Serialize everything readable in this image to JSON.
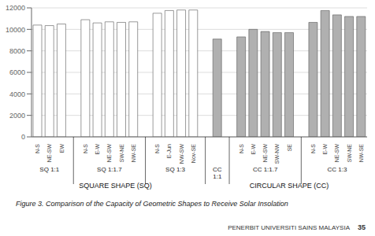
{
  "chart_data": {
    "type": "bar",
    "title": "Figure 3. Comparison of the Capacity of Geometric Shapes to Receive Solar Insolation",
    "sections": [
      {
        "label": "SQUARE SHAPE (SQ)",
        "color": "#ffffff",
        "groups": [
          {
            "label": "SQ 1:1",
            "categories": [
              "N-S",
              "NE-SW",
              "EW"
            ],
            "values": [
              10400,
              10350,
              10500
            ]
          },
          {
            "label": "SQ 1:1.7",
            "categories": [
              "N-S",
              "E-W",
              "NE-SW",
              "SW-NE",
              "NW-SE"
            ],
            "values": [
              10900,
              10600,
              10700,
              10650,
              10700
            ]
          },
          {
            "label": "SQ 1:3",
            "categories": [
              "N-S",
              "E-Jun",
              "NW-SW",
              "Nov-SE"
            ],
            "values": [
              11500,
              11750,
              11800,
              11800
            ]
          }
        ]
      },
      {
        "label": "CIRCULAR SHAPE (CC)",
        "color": "#b0b0b0",
        "groups": [
          {
            "label": "CC\n1:1",
            "categories": [
              null
            ],
            "values": [
              9100
            ]
          },
          {
            "label": "CC 1:1.7",
            "categories": [
              "N-S",
              "E-W",
              "NE-SW",
              "SW-NW",
              "SE"
            ],
            "values": [
              9300,
              10000,
              9800,
              9700,
              9700
            ]
          },
          {
            "label": "CC 1:3",
            "categories": [
              "N-S",
              "E-W",
              "NE-SW",
              "SW-NE",
              "NW-SE"
            ],
            "values": [
              10650,
              11750,
              11350,
              11200,
              11200
            ]
          }
        ]
      }
    ],
    "ylim": [
      0,
      12000
    ],
    "yticks": [
      0,
      2000,
      4000,
      6000,
      8000,
      10000,
      12000
    ],
    "grid": true,
    "annotations": [
      "PENERBIT UNIVERSITI SAINS MALAYSIA",
      "35"
    ]
  }
}
